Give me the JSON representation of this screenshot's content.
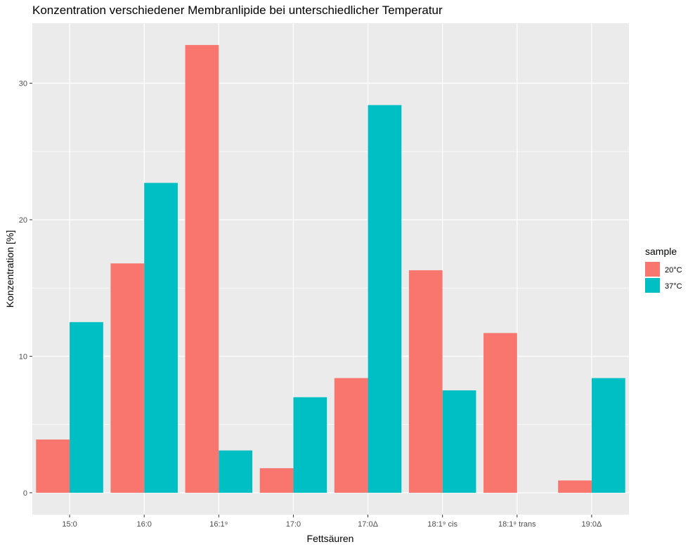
{
  "chart_data": {
    "type": "bar",
    "title": "Konzentration verschiedener Membranlipide bei unterschiedlicher Temperatur",
    "xlabel": "Fettsäuren",
    "ylabel": "Konzentration [%]",
    "categories": [
      "15:0",
      "16:0",
      "16:1⁹",
      "17:0",
      "17:0Δ",
      "18:1⁹ cis",
      "18:1⁹ trans",
      "19:0Δ"
    ],
    "series": [
      {
        "name": "20°C",
        "color": "#F8766D",
        "values": [
          3.9,
          16.8,
          32.8,
          1.8,
          8.4,
          16.3,
          11.7,
          0.9
        ]
      },
      {
        "name": "37°C",
        "color": "#00BFC4",
        "values": [
          12.5,
          22.7,
          3.1,
          7.0,
          28.4,
          7.5,
          0.0,
          8.4
        ]
      }
    ],
    "yticks": [
      0,
      10,
      20,
      30
    ],
    "ylim": [
      -1.6,
      34.4
    ],
    "grid": true,
    "legend": {
      "title": "sample",
      "position": "right"
    },
    "colors": {
      "panel": "#EBEBEB",
      "grid": "#FFFFFF"
    }
  }
}
